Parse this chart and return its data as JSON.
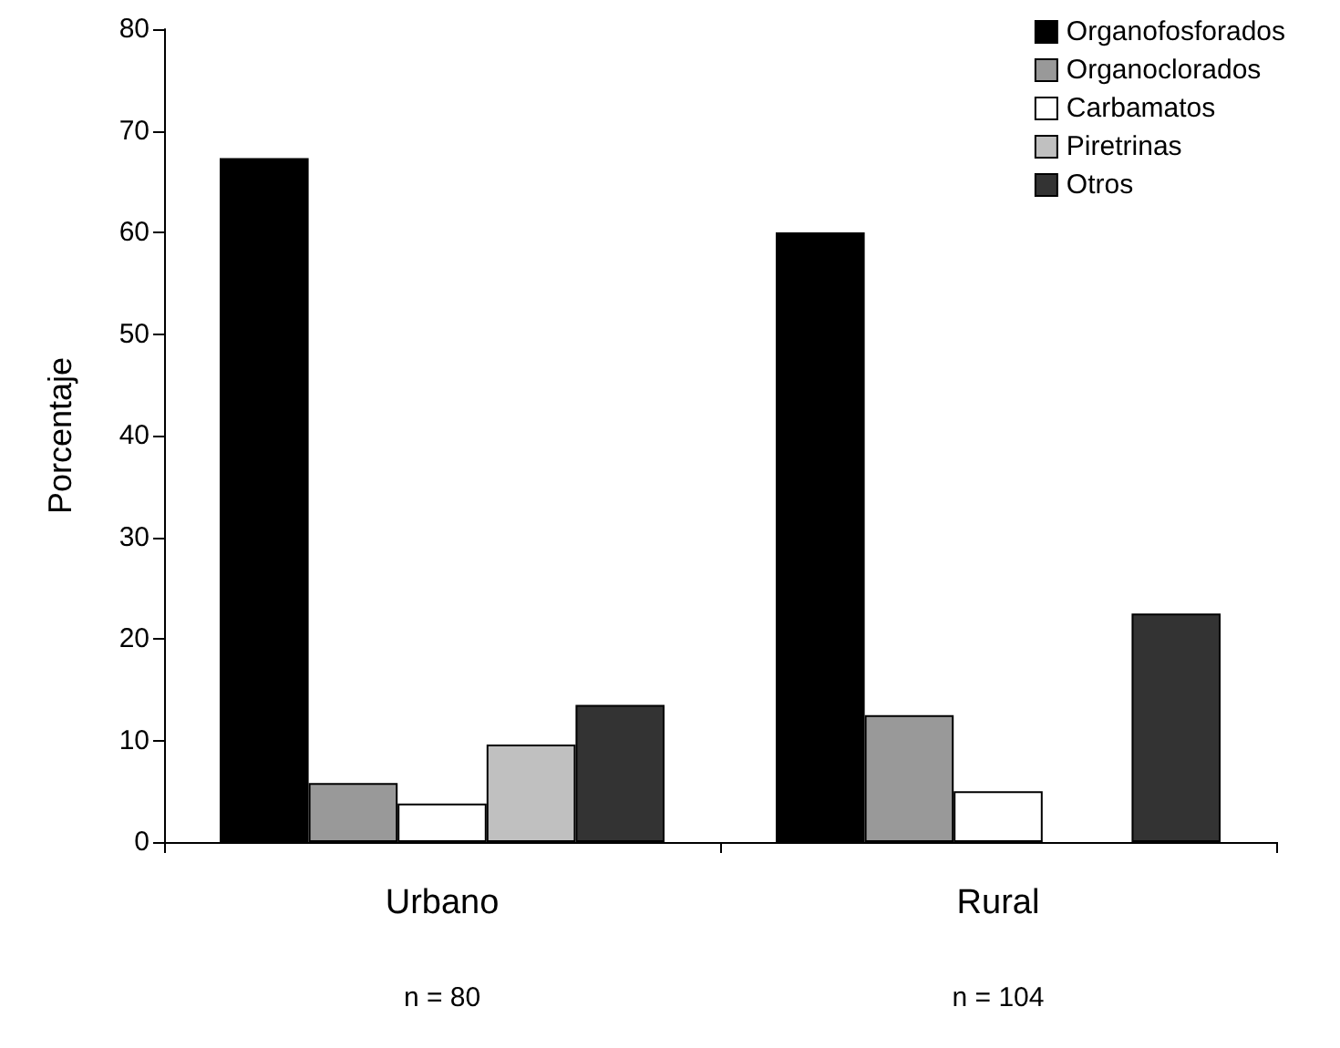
{
  "chart_data": {
    "type": "bar",
    "ylabel": "Porcentaje",
    "categories": [
      "Urbano",
      "Rural"
    ],
    "series": [
      {
        "name": "Organofosforados",
        "color": "#000000",
        "values": [
          67.3,
          60
        ]
      },
      {
        "name": "Organoclorados",
        "color": "#999999",
        "values": [
          5.8,
          12.5
        ]
      },
      {
        "name": "Carbamatos",
        "color": "#ffffff",
        "values": [
          3.8,
          5
        ]
      },
      {
        "name": "Piretrinas",
        "color": "#c0c0c0",
        "values": [
          9.6,
          null
        ]
      },
      {
        "name": "Otros",
        "color": "#333333",
        "values": [
          13.5,
          22.5
        ]
      }
    ],
    "ylim": [
      0,
      80
    ],
    "yticks": [
      0,
      10,
      20,
      30,
      40,
      50,
      60,
      70,
      80
    ],
    "grid": false,
    "legend": "top right",
    "annotations": [
      "n = 80",
      "n = 104"
    ]
  }
}
